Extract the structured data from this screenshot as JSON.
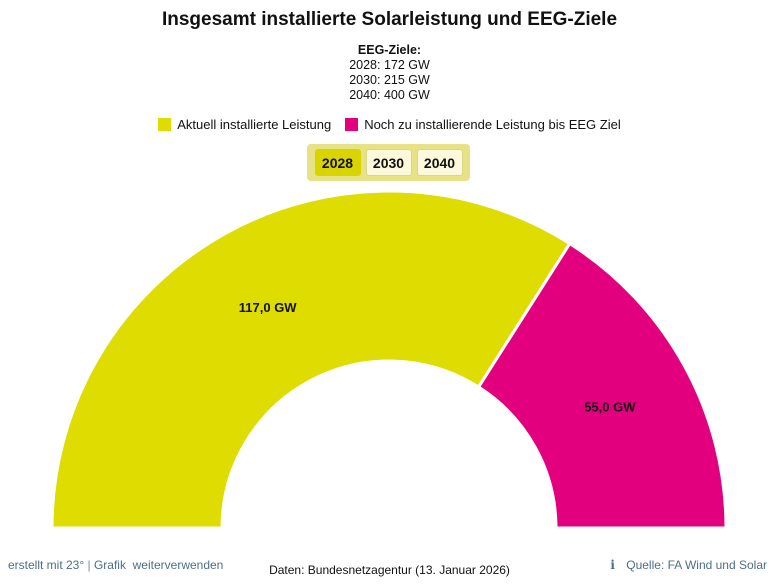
{
  "colors": {
    "installed": "#dedc00",
    "remaining": "#e3007f",
    "tab_bar": "#e6e285",
    "tab_active": "#d9d400"
  },
  "header": {
    "title": "Insgesamt installierte Solarleistung und EEG-Ziele"
  },
  "goals": {
    "heading": "EEG-Ziele:",
    "lines": [
      "2028: 172 GW",
      "2030: 215 GW",
      "2040: 400 GW"
    ]
  },
  "legend": {
    "installed": "Aktuell installierte Leistung",
    "remaining": "Noch zu installierende Leistung bis EEG Ziel"
  },
  "tabs": [
    "2028",
    "2030",
    "2040"
  ],
  "selected_tab": "2028",
  "chart_data": {
    "type": "pie",
    "variant": "semicircle-donut",
    "title": "Insgesamt installierte Solarleistung und EEG-Ziele",
    "unit": "GW",
    "categories": [
      "Aktuell installierte Leistung",
      "Noch zu installierende Leistung bis EEG Ziel"
    ],
    "values": [
      117.0,
      55.0
    ],
    "labels": [
      "117,0 GW",
      "55,0 GW"
    ],
    "total": 172,
    "target_year": "2028"
  },
  "footer": {
    "credit": "erstellt mit 23°",
    "separator": "|",
    "reuse": "Grafik  weiterverwenden",
    "data_source": "Daten: Bundesnetzagentur (13. Januar 2026)",
    "info_icon": "i",
    "source": "Quelle: FA Wind und Solar"
  }
}
